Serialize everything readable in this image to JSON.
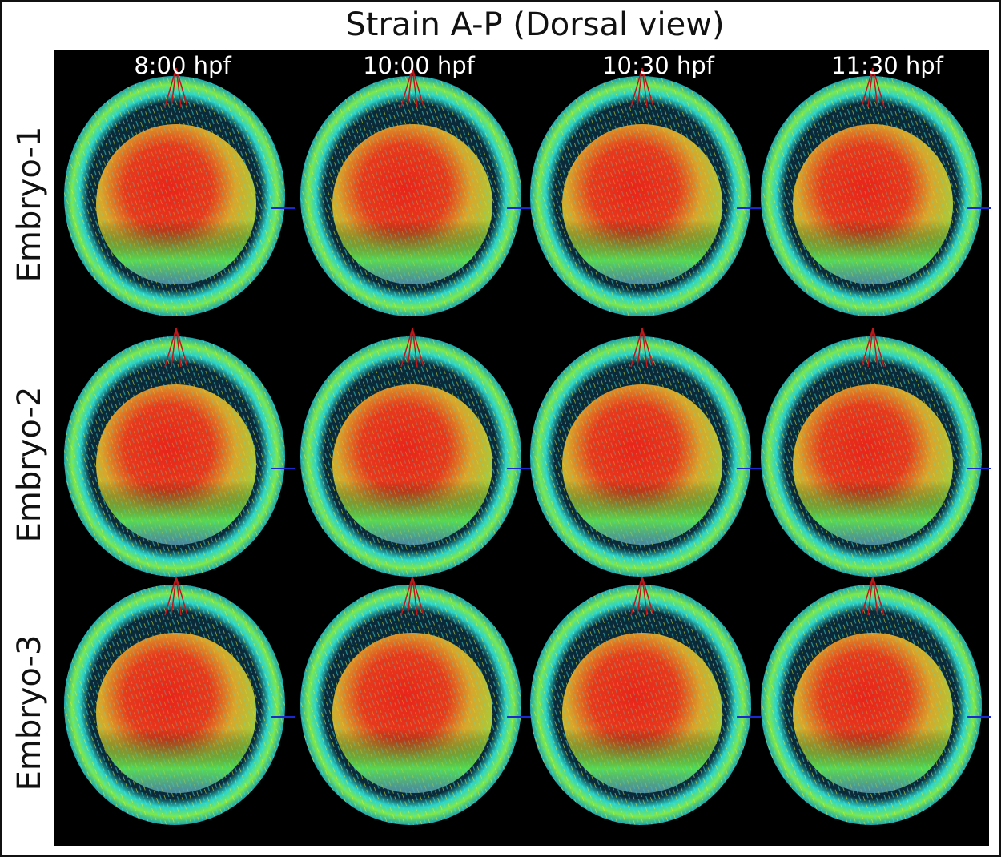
{
  "title": "Strain A-P (Dorsal view)",
  "columns": [
    "8:00 hpf",
    "10:00 hpf",
    "10:30 hpf",
    "11:30 hpf"
  ],
  "rows": [
    "Embryo-1",
    "Embryo-2",
    "Embryo-3"
  ]
}
